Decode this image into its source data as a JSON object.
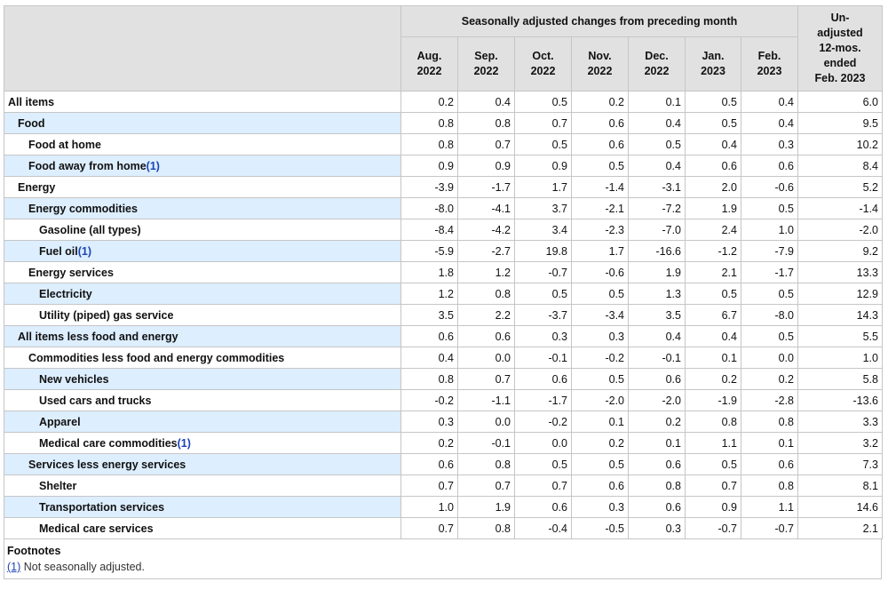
{
  "header": {
    "span_label": "Seasonally adjusted changes from preceding month",
    "columns": [
      {
        "line1": "Aug.",
        "line2": "2022"
      },
      {
        "line1": "Sep.",
        "line2": "2022"
      },
      {
        "line1": "Oct.",
        "line2": "2022"
      },
      {
        "line1": "Nov.",
        "line2": "2022"
      },
      {
        "line1": "Dec.",
        "line2": "2022"
      },
      {
        "line1": "Jan.",
        "line2": "2023"
      },
      {
        "line1": "Feb.",
        "line2": "2023"
      }
    ],
    "last_column": [
      "Un-",
      "adjusted",
      "12-mos.",
      "ended",
      "Feb. 2023"
    ]
  },
  "rows": [
    {
      "label": "All items",
      "indent": 0,
      "footnote": "",
      "values": [
        "0.2",
        "0.4",
        "0.5",
        "0.2",
        "0.1",
        "0.5",
        "0.4",
        "6.0"
      ]
    },
    {
      "label": "Food",
      "indent": 1,
      "footnote": "",
      "values": [
        "0.8",
        "0.8",
        "0.7",
        "0.6",
        "0.4",
        "0.5",
        "0.4",
        "9.5"
      ]
    },
    {
      "label": "Food at home",
      "indent": 2,
      "footnote": "",
      "values": [
        "0.8",
        "0.7",
        "0.5",
        "0.6",
        "0.5",
        "0.4",
        "0.3",
        "10.2"
      ]
    },
    {
      "label": "Food away from home",
      "indent": 2,
      "footnote": "(1)",
      "values": [
        "0.9",
        "0.9",
        "0.9",
        "0.5",
        "0.4",
        "0.6",
        "0.6",
        "8.4"
      ]
    },
    {
      "label": "Energy",
      "indent": 1,
      "footnote": "",
      "values": [
        "-3.9",
        "-1.7",
        "1.7",
        "-1.4",
        "-3.1",
        "2.0",
        "-0.6",
        "5.2"
      ]
    },
    {
      "label": "Energy commodities",
      "indent": 2,
      "footnote": "",
      "values": [
        "-8.0",
        "-4.1",
        "3.7",
        "-2.1",
        "-7.2",
        "1.9",
        "0.5",
        "-1.4"
      ]
    },
    {
      "label": "Gasoline (all types)",
      "indent": 3,
      "footnote": "",
      "values": [
        "-8.4",
        "-4.2",
        "3.4",
        "-2.3",
        "-7.0",
        "2.4",
        "1.0",
        "-2.0"
      ]
    },
    {
      "label": "Fuel oil",
      "indent": 3,
      "footnote": "(1)",
      "values": [
        "-5.9",
        "-2.7",
        "19.8",
        "1.7",
        "-16.6",
        "-1.2",
        "-7.9",
        "9.2"
      ]
    },
    {
      "label": "Energy services",
      "indent": 2,
      "footnote": "",
      "values": [
        "1.8",
        "1.2",
        "-0.7",
        "-0.6",
        "1.9",
        "2.1",
        "-1.7",
        "13.3"
      ]
    },
    {
      "label": "Electricity",
      "indent": 3,
      "footnote": "",
      "values": [
        "1.2",
        "0.8",
        "0.5",
        "0.5",
        "1.3",
        "0.5",
        "0.5",
        "12.9"
      ]
    },
    {
      "label": "Utility (piped) gas service",
      "indent": 3,
      "footnote": "",
      "values": [
        "3.5",
        "2.2",
        "-3.7",
        "-3.4",
        "3.5",
        "6.7",
        "-8.0",
        "14.3"
      ]
    },
    {
      "label": "All items less food and energy",
      "indent": 1,
      "footnote": "",
      "values": [
        "0.6",
        "0.6",
        "0.3",
        "0.3",
        "0.4",
        "0.4",
        "0.5",
        "5.5"
      ]
    },
    {
      "label": "Commodities less food and energy commodities",
      "indent": 2,
      "footnote": "",
      "values": [
        "0.4",
        "0.0",
        "-0.1",
        "-0.2",
        "-0.1",
        "0.1",
        "0.0",
        "1.0"
      ]
    },
    {
      "label": "New vehicles",
      "indent": 3,
      "footnote": "",
      "values": [
        "0.8",
        "0.7",
        "0.6",
        "0.5",
        "0.6",
        "0.2",
        "0.2",
        "5.8"
      ]
    },
    {
      "label": "Used cars and trucks",
      "indent": 3,
      "footnote": "",
      "values": [
        "-0.2",
        "-1.1",
        "-1.7",
        "-2.0",
        "-2.0",
        "-1.9",
        "-2.8",
        "-13.6"
      ]
    },
    {
      "label": "Apparel",
      "indent": 3,
      "footnote": "",
      "values": [
        "0.3",
        "0.0",
        "-0.2",
        "0.1",
        "0.2",
        "0.8",
        "0.8",
        "3.3"
      ]
    },
    {
      "label": "Medical care commodities",
      "indent": 3,
      "footnote": "(1)",
      "values": [
        "0.2",
        "-0.1",
        "0.0",
        "0.2",
        "0.1",
        "1.1",
        "0.1",
        "3.2"
      ]
    },
    {
      "label": "Services less energy services",
      "indent": 2,
      "footnote": "",
      "values": [
        "0.6",
        "0.8",
        "0.5",
        "0.5",
        "0.6",
        "0.5",
        "0.6",
        "7.3"
      ]
    },
    {
      "label": "Shelter",
      "indent": 3,
      "footnote": "",
      "values": [
        "0.7",
        "0.7",
        "0.7",
        "0.6",
        "0.8",
        "0.7",
        "0.8",
        "8.1"
      ]
    },
    {
      "label": "Transportation services",
      "indent": 3,
      "footnote": "",
      "values": [
        "1.0",
        "1.9",
        "0.6",
        "0.3",
        "0.6",
        "0.9",
        "1.1",
        "14.6"
      ]
    },
    {
      "label": "Medical care services",
      "indent": 3,
      "footnote": "",
      "values": [
        "0.7",
        "0.8",
        "-0.4",
        "-0.5",
        "0.3",
        "-0.7",
        "-0.7",
        "2.1"
      ]
    }
  ],
  "footnotes": {
    "title": "Footnotes",
    "items": [
      {
        "marker": "(1)",
        "text": " Not seasonally adjusted."
      }
    ]
  },
  "colors": {
    "header_bg": "#e1e1e1",
    "stripe_bg": "#ddeeff",
    "link": "#1a44b8",
    "border": "#c6c6c6"
  }
}
